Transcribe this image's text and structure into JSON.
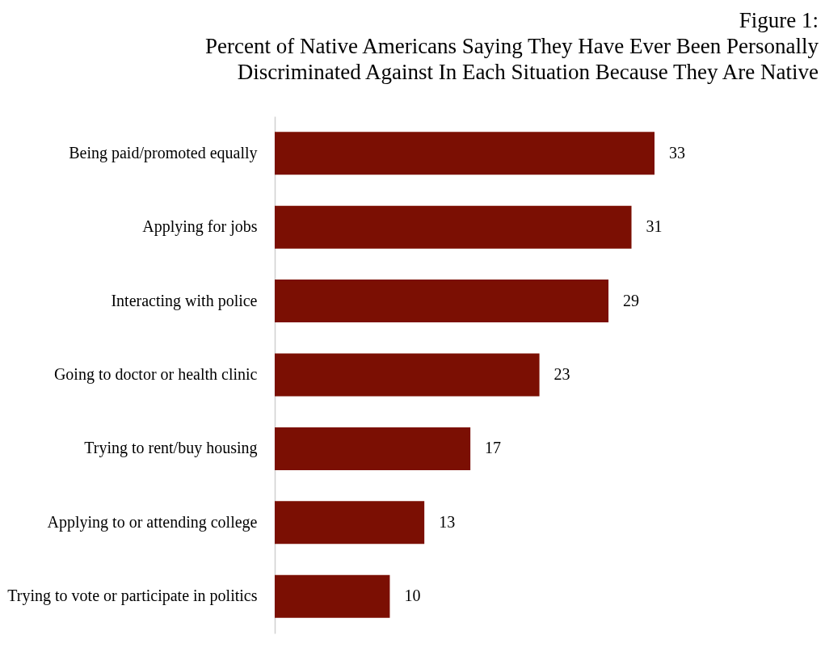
{
  "chart_data": {
    "type": "bar",
    "orientation": "horizontal",
    "title": "Figure 1:\nPercent of Native Americans Saying They Have Ever Been Personally\nDiscriminated Against In Each Situation Because They Are Native",
    "categories": [
      "Being paid/promoted equally",
      "Applying for jobs",
      "Interacting with police",
      "Going to doctor or health clinic",
      "Trying to rent/buy housing",
      "Applying to or attending college",
      "Trying to vote or participate in politics"
    ],
    "values": [
      33,
      31,
      29,
      23,
      17,
      13,
      10
    ],
    "color": "#7b0f03",
    "data_labels": true
  }
}
